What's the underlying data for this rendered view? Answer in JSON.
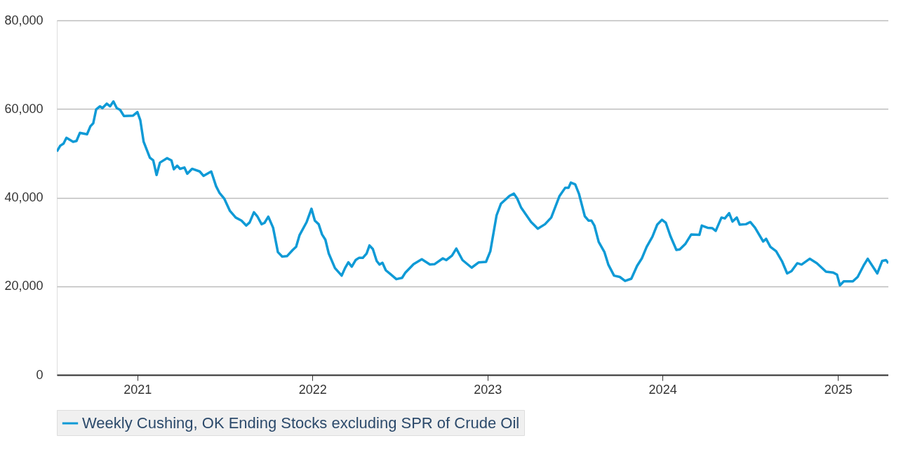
{
  "chart_data": {
    "type": "line",
    "x": [
      "2020-07-17",
      "2020-07-24",
      "2020-07-31",
      "2020-08-06",
      "2020-08-20",
      "2020-08-27",
      "2020-09-03",
      "2020-09-18",
      "2020-09-25",
      "2020-10-01",
      "2020-10-07",
      "2020-10-15",
      "2020-10-20",
      "2020-10-29",
      "2020-11-05",
      "2020-11-12",
      "2020-11-19",
      "2020-11-26",
      "2020-12-04",
      "2020-12-23",
      "2021-01-01",
      "2021-01-07",
      "2021-01-14",
      "2021-01-27",
      "2021-02-03",
      "2021-02-10",
      "2021-02-17",
      "2021-03-04",
      "2021-03-13",
      "2021-03-18",
      "2021-03-25",
      "2021-03-31",
      "2021-04-09",
      "2021-04-15",
      "2021-04-25",
      "2021-05-11",
      "2021-05-19",
      "2021-06-04",
      "2021-06-14",
      "2021-06-21",
      "2021-07-01",
      "2021-07-13",
      "2021-07-25",
      "2021-08-06",
      "2021-08-16",
      "2021-08-23",
      "2021-09-01",
      "2021-09-08",
      "2021-09-17",
      "2021-09-23",
      "2021-10-01",
      "2021-10-11",
      "2021-10-21",
      "2021-10-30",
      "2021-11-09",
      "2021-11-21",
      "2021-11-28",
      "2021-12-05",
      "2021-12-20",
      "2021-12-30",
      "2022-01-06",
      "2022-01-14",
      "2022-01-21",
      "2022-01-28",
      "2022-02-04",
      "2022-02-17",
      "2022-03-03",
      "2022-03-10",
      "2022-03-17",
      "2022-03-24",
      "2022-04-01",
      "2022-04-08",
      "2022-04-16",
      "2022-04-24",
      "2022-04-30",
      "2022-05-07",
      "2022-05-15",
      "2022-05-21",
      "2022-05-27",
      "2022-06-03",
      "2022-06-13",
      "2022-06-25",
      "2022-07-07",
      "2022-07-14",
      "2022-07-31",
      "2022-08-17",
      "2022-09-03",
      "2022-09-13",
      "2022-09-30",
      "2022-10-07",
      "2022-10-19",
      "2022-10-28",
      "2022-11-10",
      "2022-11-29",
      "2022-12-14",
      "2022-12-29",
      "2023-01-07",
      "2023-01-20",
      "2023-01-29",
      "2023-02-16",
      "2023-02-25",
      "2023-03-04",
      "2023-03-12",
      "2023-04-02",
      "2023-04-16",
      "2023-05-01",
      "2023-05-14",
      "2023-05-31",
      "2023-06-12",
      "2023-06-19",
      "2023-06-24",
      "2023-07-03",
      "2023-07-11",
      "2023-07-23",
      "2023-07-31",
      "2023-08-06",
      "2023-08-12",
      "2023-08-21",
      "2023-09-02",
      "2023-09-10",
      "2023-09-22",
      "2023-10-04",
      "2023-10-15",
      "2023-10-28",
      "2023-11-09",
      "2023-11-19",
      "2023-11-29",
      "2023-12-11",
      "2023-12-21",
      "2023-12-31",
      "2024-01-08",
      "2024-01-18",
      "2024-01-30",
      "2024-02-06",
      "2024-02-18",
      "2024-03-01",
      "2024-03-18",
      "2024-03-23",
      "2024-04-04",
      "2024-04-14",
      "2024-04-21",
      "2024-05-03",
      "2024-05-10",
      "2024-05-19",
      "2024-05-26",
      "2024-06-04",
      "2024-06-10",
      "2024-06-23",
      "2024-07-02",
      "2024-07-12",
      "2024-07-29",
      "2024-08-04",
      "2024-08-13",
      "2024-08-25",
      "2024-09-06",
      "2024-09-17",
      "2024-09-26",
      "2024-10-08",
      "2024-10-17",
      "2024-11-03",
      "2024-11-18",
      "2024-12-07",
      "2024-12-22",
      "2024-12-30",
      "2025-01-05",
      "2025-01-13",
      "2025-02-01",
      "2025-02-11",
      "2025-02-23",
      "2025-03-04",
      "2025-03-24",
      "2025-04-03",
      "2025-04-11",
      "2025-04-16"
    ],
    "series": [
      {
        "name": "Weekly Cushing, OK Ending Stocks excluding SPR of Crude Oil",
        "color": "#0f9ad6",
        "values": [
          50400,
          51700,
          52200,
          53500,
          52600,
          52800,
          54600,
          54300,
          56100,
          56800,
          59900,
          60600,
          60200,
          61200,
          60600,
          61700,
          60200,
          59800,
          58400,
          58500,
          59300,
          57500,
          52600,
          49000,
          48400,
          45100,
          47900,
          48900,
          48400,
          46400,
          47200,
          46500,
          46800,
          45400,
          46500,
          45900,
          44900,
          45900,
          42600,
          41100,
          39800,
          37000,
          35500,
          34800,
          33700,
          34400,
          36700,
          35800,
          34000,
          34300,
          35700,
          33200,
          27700,
          26700,
          26800,
          28200,
          28900,
          31500,
          34500,
          37500,
          34800,
          34000,
          31700,
          30500,
          27400,
          24100,
          22400,
          24100,
          25400,
          24400,
          25900,
          26400,
          26400,
          27400,
          29200,
          28400,
          25700,
          24900,
          25300,
          23600,
          22700,
          21600,
          21900,
          23100,
          25000,
          26100,
          24900,
          25000,
          26300,
          25900,
          26900,
          28500,
          25900,
          24200,
          25400,
          25500,
          27900,
          36000,
          38600,
          40400,
          40900,
          39800,
          37800,
          34500,
          33000,
          34000,
          35500,
          40300,
          42200,
          42200,
          43400,
          43000,
          40800,
          35800,
          34800,
          34800,
          33700,
          30000,
          27700,
          24900,
          22400,
          22100,
          21200,
          21700,
          24600,
          26300,
          28900,
          31200,
          33900,
          35000,
          34300,
          31200,
          28200,
          28300,
          29600,
          31700,
          31600,
          33700,
          33200,
          33100,
          32500,
          35500,
          35300,
          36500,
          34600,
          35500,
          33900,
          34000,
          34500,
          33200,
          30100,
          30700,
          28900,
          27900,
          25700,
          22900,
          23400,
          25200,
          24900,
          26200,
          25200,
          23300,
          23100,
          22600,
          20200,
          21100,
          21100,
          22100,
          24600,
          26200,
          22900,
          25700,
          25900,
          25200
        ]
      }
    ],
    "xlim": [
      "2020-07-17",
      "2025-04-16"
    ],
    "xticks": [
      "2021",
      "2022",
      "2023",
      "2024",
      "2025"
    ],
    "ylim": [
      0,
      80000
    ],
    "yticks": [
      0,
      {
        "value": 20000,
        "label": "20,000"
      },
      {
        "value": 40000,
        "label": "40,000"
      },
      {
        "value": 60000,
        "label": "60,000"
      },
      {
        "value": 80000,
        "label": "80,000"
      }
    ],
    "grid": "y",
    "legend": "bottom",
    "marker": "none",
    "line_style": "solid"
  }
}
